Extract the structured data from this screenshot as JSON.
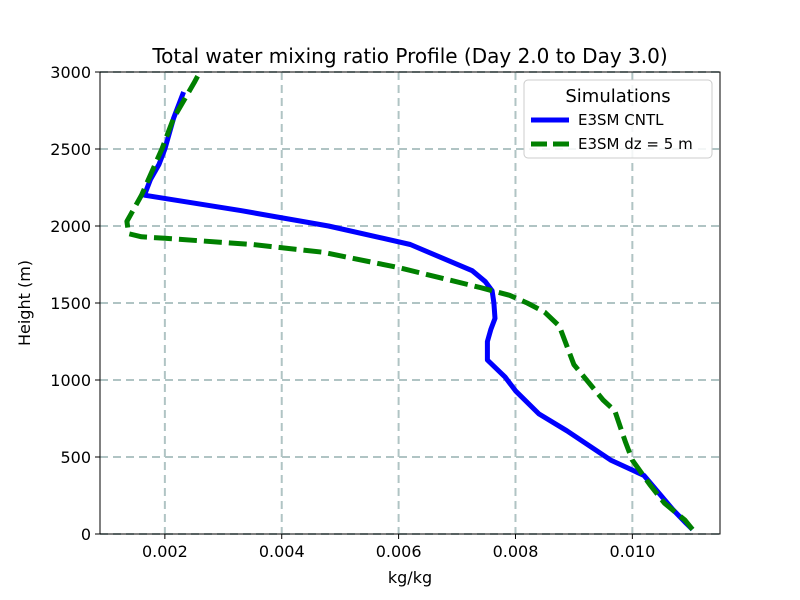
{
  "chart_data": {
    "type": "line",
    "title": "Total water mixing ratio Profile (Day 2.0 to Day 3.0)",
    "xlabel": "kg/kg",
    "ylabel": "Height (m)",
    "xlim": [
      0.00089,
      0.0115
    ],
    "ylim": [
      0,
      3000
    ],
    "xticks": [
      0.002,
      0.004,
      0.006,
      0.008,
      0.01
    ],
    "xtick_labels": [
      "0.002",
      "0.004",
      "0.006",
      "0.008",
      "0.010"
    ],
    "yticks": [
      0,
      500,
      1000,
      1500,
      2000,
      2500,
      3000
    ],
    "ytick_labels": [
      "0",
      "500",
      "1000",
      "1500",
      "2000",
      "2500",
      "3000"
    ],
    "grid": true,
    "legend": {
      "title": "Simulations",
      "position": "top-right"
    },
    "series": [
      {
        "name": "E3SM CNTL",
        "color": "#0000ff",
        "style": "solid",
        "x": [
          0.01103,
          0.01092,
          0.01069,
          0.0102,
          0.00963,
          0.00888,
          0.0084,
          0.008,
          0.00782,
          0.00752,
          0.00752,
          0.00758,
          0.00765,
          0.00763,
          0.0076,
          0.00748,
          0.00726,
          0.0062,
          0.0048,
          0.0033,
          0.00165,
          0.00175,
          0.0019,
          0.002,
          0.00215,
          0.00232
        ],
        "y": [
          30,
          70,
          160,
          380,
          480,
          670,
          780,
          930,
          1020,
          1130,
          1250,
          1330,
          1400,
          1500,
          1580,
          1640,
          1710,
          1880,
          2000,
          2100,
          2200,
          2300,
          2400,
          2500,
          2700,
          2870
        ]
      },
      {
        "name": "E3SM dz = 5 m",
        "color": "#008000",
        "style": "dashed",
        "x": [
          0.01103,
          0.0109,
          0.01055,
          0.0103,
          0.01,
          0.00988,
          0.0097,
          0.0095,
          0.009,
          0.00875,
          0.0085,
          0.0082,
          0.0079,
          0.0074,
          0.006,
          0.0047,
          0.0035,
          0.002,
          0.0016,
          0.00138,
          0.00135,
          0.0016,
          0.00195,
          0.00215,
          0.0025,
          0.0026
        ],
        "y": [
          30,
          90,
          200,
          320,
          480,
          600,
          800,
          870,
          1100,
          1350,
          1440,
          1500,
          1550,
          1600,
          1730,
          1830,
          1880,
          1920,
          1930,
          1950,
          2030,
          2200,
          2500,
          2700,
          2930,
          3000
        ]
      }
    ]
  }
}
